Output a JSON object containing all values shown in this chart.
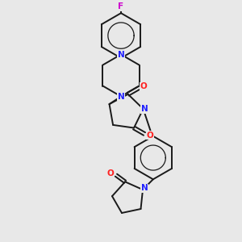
{
  "bg_color": "#e8e8e8",
  "bond_color": "#1a1a1a",
  "N_color": "#2020ff",
  "O_color": "#ff2020",
  "F_color": "#cc00cc",
  "lw": 1.4,
  "fs": 7.5,
  "fig_w": 3.0,
  "fig_h": 3.0,
  "dpi": 100,
  "xlim": [
    -1.8,
    1.8
  ],
  "ylim": [
    -4.8,
    3.2
  ]
}
